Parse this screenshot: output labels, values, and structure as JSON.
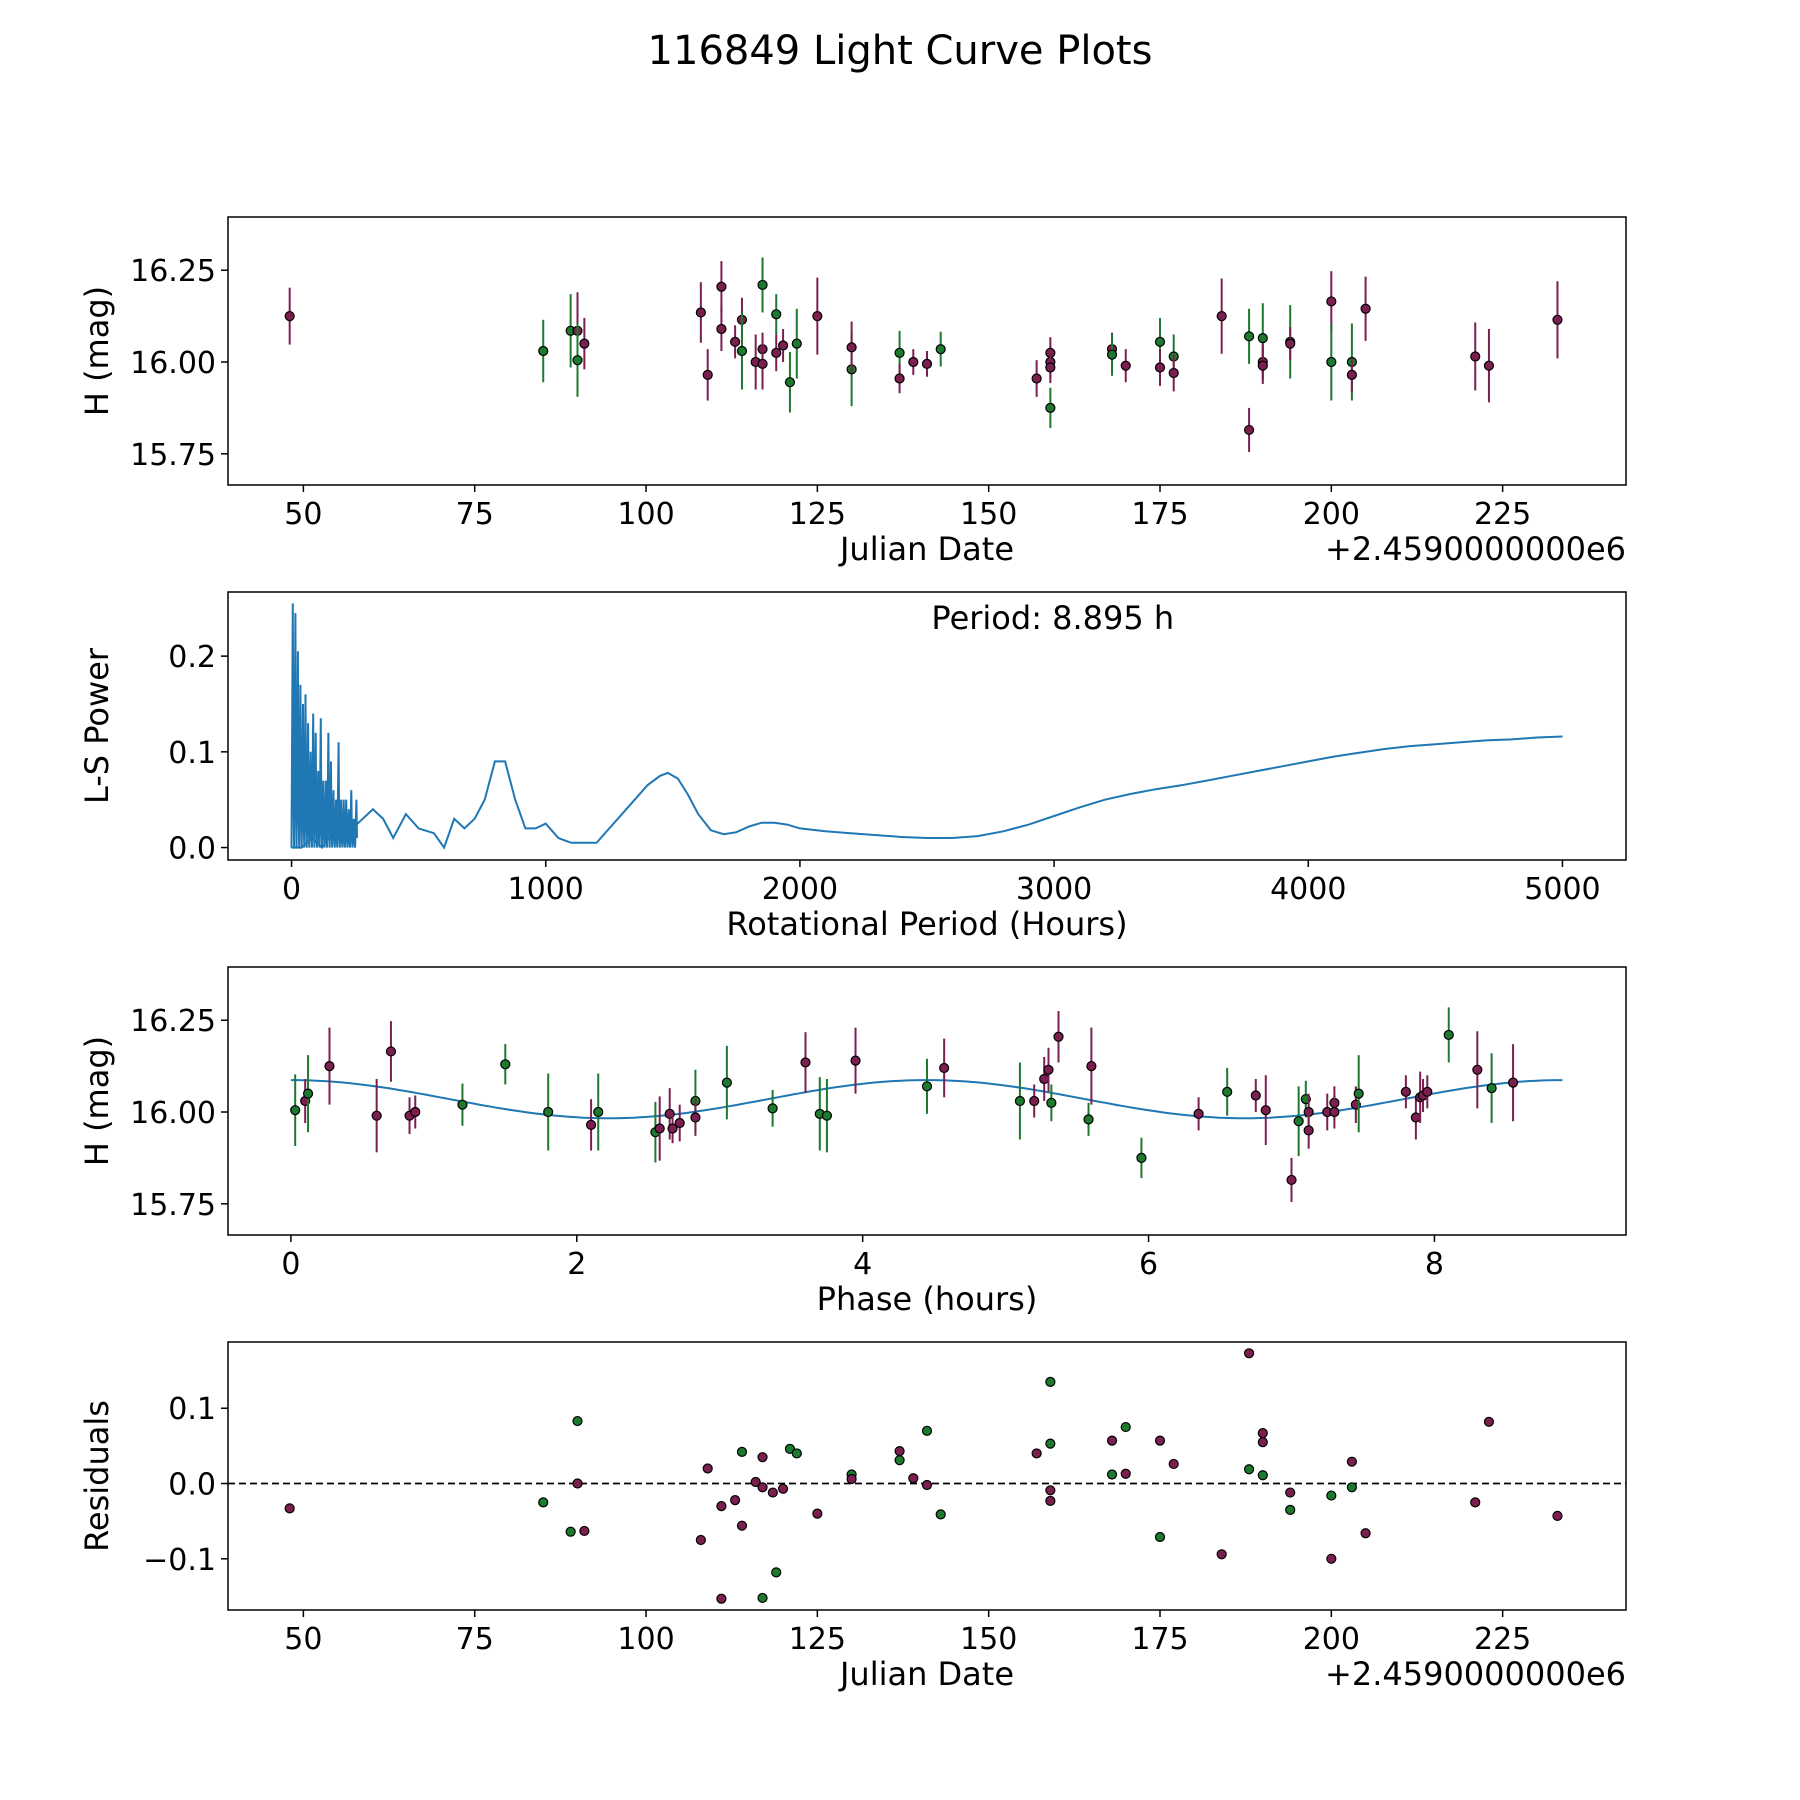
{
  "figure": {
    "title": "116849 Light Curve Plots",
    "colors": {
      "band_r": "#7b1e50",
      "band_g": "#1b7a2e",
      "curve": "#1f77b4",
      "marker_edge": "#000000",
      "frame": "#000000"
    }
  },
  "chart_data": [
    {
      "type": "scatter",
      "name": "magnitude-vs-date",
      "xlabel": "Julian Date",
      "ylabel": "H (mag)",
      "offset_label": "+2.4590000000e6",
      "xlim": [
        39,
        243
      ],
      "ylim": [
        15.665,
        16.395
      ],
      "xticks": [
        50,
        75,
        100,
        125,
        150,
        175,
        200,
        225
      ],
      "yticks": [
        15.75,
        16.0,
        16.25
      ],
      "ytick_labels": [
        "15.75",
        "16.00",
        "16.25"
      ],
      "points": [
        [
          48,
          16.125,
          0.155,
          "r"
        ],
        [
          85,
          16.03,
          0.17,
          "g"
        ],
        [
          89,
          16.085,
          0.2,
          "g"
        ],
        [
          90,
          16.085,
          0.21,
          "r"
        ],
        [
          90,
          16.005,
          0.2,
          "g"
        ],
        [
          91,
          16.05,
          0.14,
          "r"
        ],
        [
          108,
          16.135,
          0.165,
          "r"
        ],
        [
          109,
          15.965,
          0.14,
          "r"
        ],
        [
          111,
          16.09,
          0.12,
          "r"
        ],
        [
          111,
          16.205,
          0.14,
          "r"
        ],
        [
          113,
          16.055,
          0.09,
          "r"
        ],
        [
          114,
          16.115,
          0.12,
          "r"
        ],
        [
          114,
          16.03,
          0.21,
          "g"
        ],
        [
          116,
          16.0,
          0.15,
          "r"
        ],
        [
          117,
          16.035,
          0.09,
          "r"
        ],
        [
          117,
          15.995,
          0.14,
          "r"
        ],
        [
          117,
          16.21,
          0.15,
          "g"
        ],
        [
          119,
          16.025,
          0.1,
          "r"
        ],
        [
          119,
          16.13,
          0.11,
          "g"
        ],
        [
          120,
          16.045,
          0.09,
          "r"
        ],
        [
          121,
          15.945,
          0.165,
          "g"
        ],
        [
          122,
          16.05,
          0.19,
          "g"
        ],
        [
          125,
          16.125,
          0.21,
          "r"
        ],
        [
          130,
          15.98,
          0.2,
          "g"
        ],
        [
          130,
          16.04,
          0.14,
          "r"
        ],
        [
          137,
          16.025,
          0.12,
          "g"
        ],
        [
          137,
          15.955,
          0.08,
          "r"
        ],
        [
          139,
          16.0,
          0.07,
          "r"
        ],
        [
          141,
          15.995,
          0.07,
          "r"
        ],
        [
          143,
          16.035,
          0.095,
          "g"
        ],
        [
          157,
          15.955,
          0.1,
          "r"
        ],
        [
          159,
          16.0,
          0.09,
          "r"
        ],
        [
          159,
          16.025,
          0.085,
          "r"
        ],
        [
          159,
          15.985,
          0.085,
          "r"
        ],
        [
          159,
          15.875,
          0.11,
          "g"
        ],
        [
          168,
          16.035,
          0.09,
          "r"
        ],
        [
          168,
          16.02,
          0.115,
          "g"
        ],
        [
          170,
          15.99,
          0.09,
          "r"
        ],
        [
          175,
          16.055,
          0.13,
          "g"
        ],
        [
          175,
          15.985,
          0.1,
          "r"
        ],
        [
          177,
          16.015,
          0.12,
          "g"
        ],
        [
          177,
          15.97,
          0.1,
          "r"
        ],
        [
          184,
          16.125,
          0.205,
          "r"
        ],
        [
          188,
          16.07,
          0.15,
          "g"
        ],
        [
          188,
          15.815,
          0.12,
          "r"
        ],
        [
          190,
          16.065,
          0.19,
          "g"
        ],
        [
          190,
          16.0,
          0.1,
          "r"
        ],
        [
          190,
          15.99,
          0.1,
          "r"
        ],
        [
          194,
          16.055,
          0.2,
          "g"
        ],
        [
          194,
          16.05,
          0.09,
          "r"
        ],
        [
          200,
          16.165,
          0.165,
          "r"
        ],
        [
          200,
          16.0,
          0.21,
          "g"
        ],
        [
          203,
          16.0,
          0.21,
          "g"
        ],
        [
          203,
          15.965,
          0.09,
          "r"
        ],
        [
          205,
          16.145,
          0.175,
          "r"
        ],
        [
          221,
          16.015,
          0.185,
          "r"
        ],
        [
          223,
          15.99,
          0.2,
          "r"
        ],
        [
          233,
          16.115,
          0.21,
          "r"
        ]
      ]
    },
    {
      "type": "line",
      "name": "periodogram",
      "xlabel": "Rotational Period (Hours)",
      "ylabel": "L-S Power",
      "annotation": "Period: 8.895 h",
      "xlim": [
        -250,
        5250
      ],
      "ylim": [
        -0.013,
        0.267
      ],
      "xticks": [
        0,
        1000,
        2000,
        3000,
        4000,
        5000
      ],
      "yticks": [
        0.0,
        0.1,
        0.2
      ],
      "ytick_labels": [
        "0.0",
        "0.1",
        "0.2"
      ],
      "x": [
        0,
        40,
        80,
        120,
        160,
        200,
        240,
        280,
        320,
        360,
        400,
        450,
        500,
        560,
        600,
        640,
        680,
        720,
        760,
        800,
        840,
        880,
        920,
        960,
        1000,
        1050,
        1100,
        1150,
        1200,
        1250,
        1300,
        1350,
        1400,
        1450,
        1480,
        1520,
        1560,
        1600,
        1650,
        1700,
        1750,
        1800,
        1850,
        1900,
        1950,
        2000,
        2100,
        2200,
        2300,
        2400,
        2500,
        2600,
        2700,
        2800,
        2900,
        3000,
        3100,
        3200,
        3300,
        3400,
        3500,
        3600,
        3700,
        3800,
        3900,
        4000,
        4100,
        4200,
        4300,
        4400,
        4500,
        4600,
        4700,
        4800,
        4900,
        5000
      ],
      "values": [
        0.0,
        0.0,
        0.01,
        0.0,
        0.015,
        0.005,
        0.02,
        0.03,
        0.04,
        0.03,
        0.01,
        0.035,
        0.02,
        0.015,
        0.0,
        0.03,
        0.02,
        0.03,
        0.05,
        0.09,
        0.09,
        0.05,
        0.02,
        0.02,
        0.025,
        0.01,
        0.005,
        0.005,
        0.005,
        0.02,
        0.035,
        0.05,
        0.065,
        0.075,
        0.078,
        0.072,
        0.055,
        0.035,
        0.018,
        0.014,
        0.016,
        0.022,
        0.026,
        0.026,
        0.024,
        0.02,
        0.017,
        0.015,
        0.013,
        0.011,
        0.01,
        0.01,
        0.012,
        0.017,
        0.024,
        0.033,
        0.042,
        0.05,
        0.056,
        0.061,
        0.065,
        0.07,
        0.075,
        0.08,
        0.085,
        0.09,
        0.095,
        0.099,
        0.103,
        0.106,
        0.108,
        0.11,
        0.112,
        0.113,
        0.115,
        0.116
      ],
      "dense_region": [
        0,
        260
      ],
      "dense_peaks": [
        0.255,
        0.245,
        0.205,
        0.17,
        0.15,
        0.16,
        0.13,
        0.1,
        0.14,
        0.12,
        0.08,
        0.135,
        0.07,
        0.07,
        0.12,
        0.09,
        0.06,
        0.05,
        0.11,
        0.05,
        0.05,
        0.05,
        0.04,
        0.06,
        0.03,
        0.05
      ]
    },
    {
      "type": "scatter",
      "name": "phase-folded",
      "xlabel": "Phase (hours)",
      "ylabel": "H (mag)",
      "xlim": [
        -0.44,
        9.34
      ],
      "ylim": [
        15.665,
        16.395
      ],
      "xticks": [
        0,
        2,
        4,
        6,
        8
      ],
      "yticks": [
        15.75,
        16.0,
        16.25
      ],
      "ytick_labels": [
        "15.75",
        "16.00",
        "16.25"
      ],
      "model_curve": {
        "mean": 16.035,
        "amplitude": 0.052,
        "period_hours": 8.895,
        "max_phase": 0.0
      },
      "points": [
        [
          0.03,
          16.005,
          0.195,
          "g"
        ],
        [
          0.1,
          16.03,
          0.12,
          "r"
        ],
        [
          0.12,
          16.05,
          0.21,
          "g"
        ],
        [
          0.27,
          16.125,
          0.21,
          "r"
        ],
        [
          0.6,
          15.99,
          0.2,
          "r"
        ],
        [
          0.7,
          16.165,
          0.165,
          "r"
        ],
        [
          0.83,
          15.99,
          0.1,
          "r"
        ],
        [
          0.87,
          16.0,
          0.09,
          "r"
        ],
        [
          1.2,
          16.02,
          0.115,
          "g"
        ],
        [
          1.5,
          16.13,
          0.11,
          "g"
        ],
        [
          1.8,
          16.0,
          0.21,
          "g"
        ],
        [
          2.1,
          15.965,
          0.14,
          "r"
        ],
        [
          2.15,
          16.0,
          0.21,
          "g"
        ],
        [
          2.55,
          15.945,
          0.165,
          "g"
        ],
        [
          2.58,
          15.955,
          0.175,
          "r"
        ],
        [
          2.65,
          15.995,
          0.14,
          "r"
        ],
        [
          2.67,
          15.955,
          0.08,
          "r"
        ],
        [
          2.72,
          15.97,
          0.1,
          "r"
        ],
        [
          2.83,
          16.03,
          0.17,
          "g"
        ],
        [
          2.83,
          15.985,
          0.1,
          "r"
        ],
        [
          3.05,
          16.08,
          0.2,
          "g"
        ],
        [
          3.37,
          16.01,
          0.1,
          "g"
        ],
        [
          3.6,
          16.135,
          0.165,
          "r"
        ],
        [
          3.7,
          15.995,
          0.2,
          "g"
        ],
        [
          3.75,
          15.99,
          0.2,
          "g"
        ],
        [
          3.95,
          16.14,
          0.18,
          "r"
        ],
        [
          4.45,
          16.07,
          0.15,
          "g"
        ],
        [
          4.57,
          16.12,
          0.16,
          "r"
        ],
        [
          5.1,
          16.03,
          0.21,
          "g"
        ],
        [
          5.2,
          16.03,
          0.09,
          "r"
        ],
        [
          5.27,
          16.09,
          0.12,
          "r"
        ],
        [
          5.3,
          16.115,
          0.12,
          "r"
        ],
        [
          5.32,
          16.025,
          0.1,
          "g"
        ],
        [
          5.37,
          16.205,
          0.14,
          "r"
        ],
        [
          5.58,
          15.98,
          0.09,
          "g"
        ],
        [
          5.6,
          16.125,
          0.21,
          "r"
        ],
        [
          5.95,
          15.875,
          0.11,
          "g"
        ],
        [
          6.35,
          15.995,
          0.09,
          "r"
        ],
        [
          6.55,
          16.055,
          0.13,
          "g"
        ],
        [
          6.75,
          16.045,
          0.09,
          "r"
        ],
        [
          6.82,
          16.005,
          0.19,
          "r"
        ],
        [
          7.0,
          15.815,
          0.12,
          "r"
        ],
        [
          7.05,
          15.975,
          0.19,
          "g"
        ],
        [
          7.1,
          16.035,
          0.1,
          "g"
        ],
        [
          7.12,
          16.0,
          0.1,
          "r"
        ],
        [
          7.12,
          15.95,
          0.1,
          "r"
        ],
        [
          7.25,
          16.0,
          0.1,
          "r"
        ],
        [
          7.3,
          16.025,
          0.09,
          "r"
        ],
        [
          7.3,
          16.0,
          0.09,
          "r"
        ],
        [
          7.45,
          16.02,
          0.1,
          "r"
        ],
        [
          7.47,
          16.05,
          0.21,
          "g"
        ],
        [
          7.8,
          16.055,
          0.09,
          "r"
        ],
        [
          7.87,
          15.985,
          0.12,
          "r"
        ],
        [
          7.9,
          16.04,
          0.14,
          "r"
        ],
        [
          7.92,
          16.045,
          0.09,
          "r"
        ],
        [
          7.95,
          16.055,
          0.09,
          "r"
        ],
        [
          8.1,
          16.21,
          0.15,
          "g"
        ],
        [
          8.3,
          16.115,
          0.21,
          "r"
        ],
        [
          8.4,
          16.065,
          0.19,
          "g"
        ],
        [
          8.55,
          16.08,
          0.21,
          "r"
        ]
      ]
    },
    {
      "type": "scatter",
      "name": "residuals",
      "xlabel": "Julian Date",
      "ylabel": "Residuals",
      "offset_label": "+2.4590000000e6",
      "xlim": [
        39,
        243
      ],
      "ylim": [
        -0.168,
        0.188
      ],
      "xticks": [
        50,
        75,
        100,
        125,
        150,
        175,
        200,
        225
      ],
      "yticks": [
        -0.1,
        0.0,
        0.1
      ],
      "ytick_labels": [
        "−0.1",
        "0.0",
        "0.1"
      ],
      "zero_line": 0,
      "points": [
        [
          48,
          -0.033,
          "r"
        ],
        [
          85,
          -0.025,
          "g"
        ],
        [
          89,
          -0.064,
          "g"
        ],
        [
          90,
          0.083,
          "g"
        ],
        [
          90,
          0.0,
          "r"
        ],
        [
          91,
          -0.063,
          "r"
        ],
        [
          108,
          -0.075,
          "r"
        ],
        [
          109,
          0.02,
          "r"
        ],
        [
          111,
          -0.153,
          "r"
        ],
        [
          111,
          -0.03,
          "r"
        ],
        [
          113,
          -0.022,
          "r"
        ],
        [
          114,
          0.042,
          "g"
        ],
        [
          114,
          -0.056,
          "r"
        ],
        [
          116,
          0.002,
          "r"
        ],
        [
          117,
          -0.005,
          "r"
        ],
        [
          117,
          0.035,
          "r"
        ],
        [
          117,
          -0.152,
          "g"
        ],
        [
          118.5,
          -0.012,
          "r"
        ],
        [
          119,
          -0.118,
          "g"
        ],
        [
          120,
          -0.007,
          "r"
        ],
        [
          121,
          0.046,
          "g"
        ],
        [
          122,
          0.04,
          "g"
        ],
        [
          125,
          -0.04,
          "r"
        ],
        [
          130,
          0.012,
          "g"
        ],
        [
          130,
          0.006,
          "r"
        ],
        [
          137,
          0.031,
          "g"
        ],
        [
          137,
          0.043,
          "r"
        ],
        [
          139,
          0.007,
          "r"
        ],
        [
          141,
          0.07,
          "g"
        ],
        [
          141,
          -0.002,
          "r"
        ],
        [
          143,
          -0.041,
          "g"
        ],
        [
          157,
          0.04,
          "r"
        ],
        [
          159,
          0.135,
          "g"
        ],
        [
          159,
          0.053,
          "g"
        ],
        [
          159,
          -0.009,
          "r"
        ],
        [
          159,
          -0.023,
          "r"
        ],
        [
          168,
          0.057,
          "r"
        ],
        [
          168,
          0.012,
          "g"
        ],
        [
          170,
          0.075,
          "g"
        ],
        [
          170,
          0.013,
          "r"
        ],
        [
          175,
          0.057,
          "r"
        ],
        [
          175,
          -0.071,
          "g"
        ],
        [
          177,
          0.026,
          "r"
        ],
        [
          184,
          -0.094,
          "r"
        ],
        [
          188,
          0.173,
          "r"
        ],
        [
          188,
          0.019,
          "g"
        ],
        [
          190,
          0.067,
          "r"
        ],
        [
          190,
          0.055,
          "r"
        ],
        [
          190,
          0.011,
          "g"
        ],
        [
          194,
          -0.012,
          "r"
        ],
        [
          194,
          -0.035,
          "g"
        ],
        [
          200,
          -0.1,
          "r"
        ],
        [
          200,
          -0.016,
          "g"
        ],
        [
          203,
          0.029,
          "r"
        ],
        [
          203,
          -0.005,
          "g"
        ],
        [
          205,
          -0.066,
          "r"
        ],
        [
          221,
          -0.025,
          "r"
        ],
        [
          223,
          0.082,
          "r"
        ],
        [
          233,
          -0.043,
          "r"
        ]
      ]
    }
  ]
}
